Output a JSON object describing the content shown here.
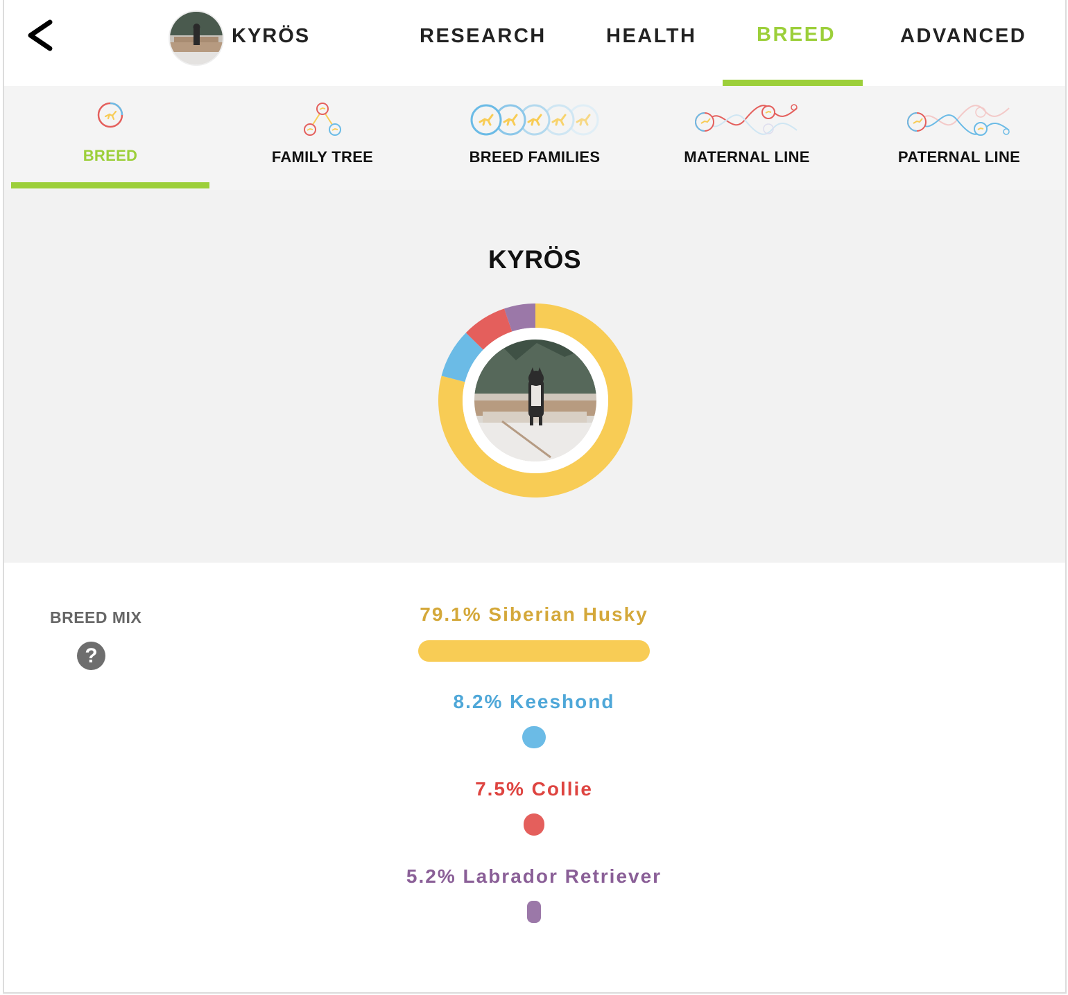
{
  "header": {
    "dog_name": "KYRÖS",
    "tabs": [
      {
        "label": "RESEARCH",
        "active": false
      },
      {
        "label": "HEALTH",
        "active": false
      },
      {
        "label": "BREED",
        "active": true
      },
      {
        "label": "ADVANCED",
        "active": false
      }
    ]
  },
  "subnav": {
    "tabs": [
      {
        "label": "BREED",
        "active": true,
        "icon": "breed-icon"
      },
      {
        "label": "FAMILY TREE",
        "active": false,
        "icon": "family-tree-icon"
      },
      {
        "label": "BREED FAMILIES",
        "active": false,
        "icon": "breed-families-icon"
      },
      {
        "label": "MATERNAL LINE",
        "active": false,
        "icon": "maternal-line-icon"
      },
      {
        "label": "PATERNAL LINE",
        "active": false,
        "icon": "paternal-line-icon"
      }
    ]
  },
  "panel": {
    "title": "KYRÖS"
  },
  "breed_mix": {
    "label": "BREED MIX",
    "help_glyph": "?"
  },
  "colors": {
    "accent": "#9ccf3a",
    "husky": "#f8cc55",
    "keeshond": "#6bbbe6",
    "collie": "#e45f5c",
    "labrador": "#9b78a8"
  },
  "chart_data": {
    "type": "pie",
    "categories": [
      "Siberian Husky",
      "Keeshond",
      "Collie",
      "Labrador Retriever"
    ],
    "values": [
      79.1,
      8.2,
      7.5,
      5.2
    ],
    "labels": [
      "79.1% Siberian Husky",
      "8.2% Keeshond",
      "7.5% Collie",
      "5.2% Labrador Retriever"
    ],
    "colors": [
      "#f8cc55",
      "#6bbbe6",
      "#e45f5c",
      "#9b78a8"
    ],
    "title": "KYRÖS"
  }
}
